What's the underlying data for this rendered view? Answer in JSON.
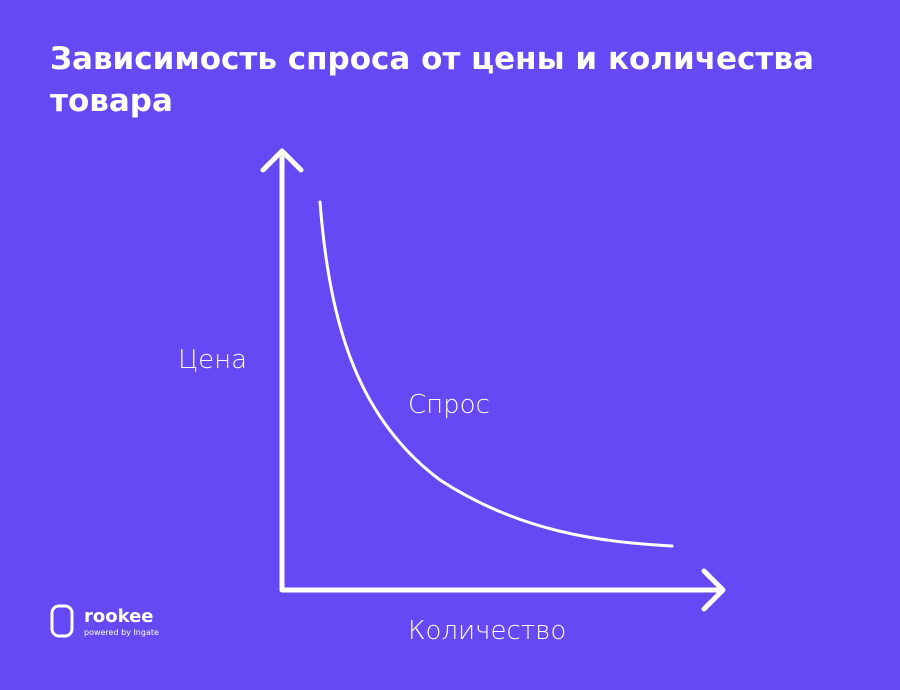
{
  "title": "Зависимость спроса от цены и количества товара",
  "y_axis_label": "Цена",
  "x_axis_label": "Количество",
  "curve_label": "Спрос",
  "logo": {
    "name": "rookee",
    "tagline": "powered by Ingate"
  }
}
